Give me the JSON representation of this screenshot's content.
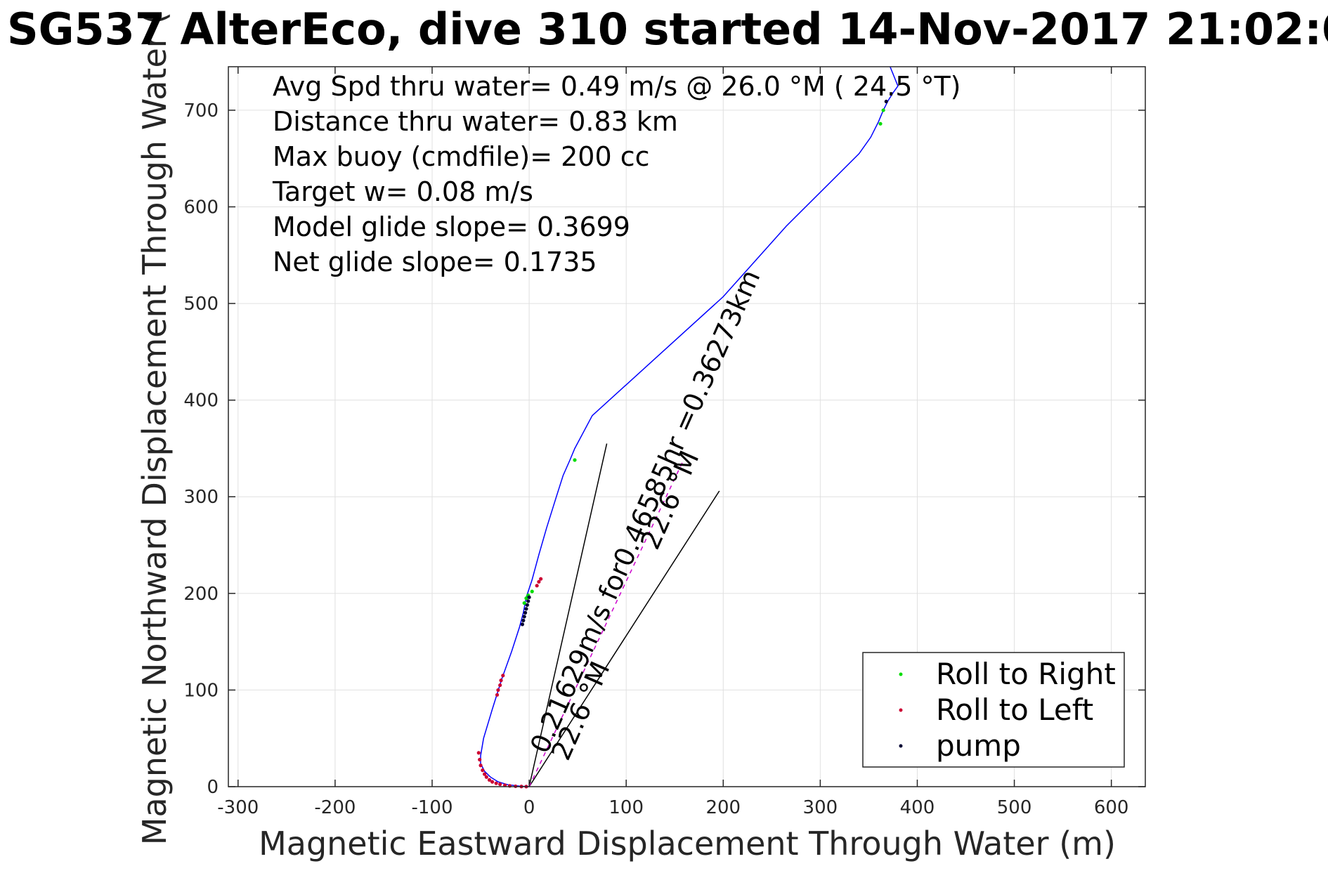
{
  "chart_data": {
    "type": "scatter",
    "title": "SG537 AlterEco, dive 310 started 14-Nov-2017 21:02:0",
    "xlabel": "Magnetic Eastward Displacement Through Water (m)",
    "ylabel": "Magnetic Northward Displacement Through Water (",
    "xlim": [
      -310,
      635
    ],
    "ylim": [
      0,
      745
    ],
    "x_ticks": [
      -300,
      -200,
      -100,
      0,
      100,
      200,
      300,
      400,
      500,
      600
    ],
    "x_tick_labels": [
      "-300",
      "-200",
      "-100",
      "0",
      "100",
      "200",
      "300",
      "400",
      "500",
      "600"
    ],
    "y_ticks": [
      0,
      100,
      200,
      300,
      400,
      500,
      600,
      700
    ],
    "y_tick_labels": [
      "0",
      "100",
      "200",
      "300",
      "400",
      "500",
      "600",
      "700"
    ],
    "grid": true,
    "legend_position": "bottom-right",
    "colors": {
      "track": "#0000ff",
      "roll_right": "#00dd00",
      "roll_left": "#cc0033",
      "pump": "#000033",
      "heading": "#000000",
      "depth_avg": "#cc00cc"
    },
    "annotations": [
      "Avg Spd thru water=  0.49 m/s @  26.0 °M ( 24.5 °T)",
      "Distance thru water=  0.83 km",
      "Max buoy (cmdfile)= 200 cc",
      "Target w= 0.08 m/s",
      "Model glide slope= 0.3699",
      "Net glide slope= 0.1735"
    ],
    "track": {
      "x": [
        0,
        -10,
        -22,
        -32,
        -40,
        -46,
        -50,
        -50,
        -47,
        -38,
        -28,
        -18,
        -10,
        -6,
        -3,
        3,
        10,
        18,
        28,
        35,
        42,
        47,
        65,
        200,
        265,
        340,
        352,
        360,
        365,
        370,
        375,
        380,
        372
      ],
      "y": [
        0,
        0.5,
        2,
        5,
        10,
        16,
        24,
        32,
        50,
        80,
        112,
        140,
        165,
        180,
        196,
        214,
        240,
        268,
        300,
        322,
        338,
        350,
        384,
        507,
        580,
        655,
        672,
        688,
        700,
        710,
        718,
        725,
        745
      ]
    },
    "roll_right": {
      "x": [
        -5,
        -3,
        -1,
        3,
        47,
        362,
        365
      ],
      "y": [
        190,
        195,
        198,
        202,
        338,
        686,
        700
      ]
    },
    "roll_left": {
      "x": [
        -52,
        -51,
        -50,
        -48,
        -46,
        -44,
        -41,
        -38,
        -34,
        -30,
        -25,
        -20,
        -14,
        -8,
        -3,
        -33,
        -32,
        -30,
        -29,
        -27,
        8,
        10,
        12
      ],
      "y": [
        35,
        28,
        22,
        17,
        13,
        10,
        7,
        5,
        3.5,
        2.5,
        1.5,
        0.8,
        0.4,
        0.2,
        0.1,
        95,
        100,
        105,
        110,
        115,
        208,
        212,
        215
      ],
      "x_range": [
        -52,
        12
      ]
    },
    "pump": {
      "x": [
        -7,
        -6,
        -5,
        -4,
        -3,
        -2,
        -1,
        0,
        368
      ],
      "y": [
        168,
        172,
        176,
        180,
        184,
        188,
        192,
        196,
        709
      ]
    },
    "heading_lines": [
      {
        "x": [
          0,
          80
        ],
        "y": [
          0,
          355
        ],
        "label": "22.6 °M"
      },
      {
        "x": [
          0,
          196
        ],
        "y": [
          0,
          306
        ],
        "label": "22.6 °M"
      }
    ],
    "depth_avg_current": {
      "x": [
        0,
        160
      ],
      "y": [
        0,
        340
      ],
      "label": "0.21629m/s for0.46585hr =0.36273km"
    },
    "legend": [
      {
        "label": "Roll to Right",
        "series": "roll_right"
      },
      {
        "label": "Roll to Left",
        "series": "roll_left"
      },
      {
        "label": "pump",
        "series": "pump"
      }
    ]
  }
}
